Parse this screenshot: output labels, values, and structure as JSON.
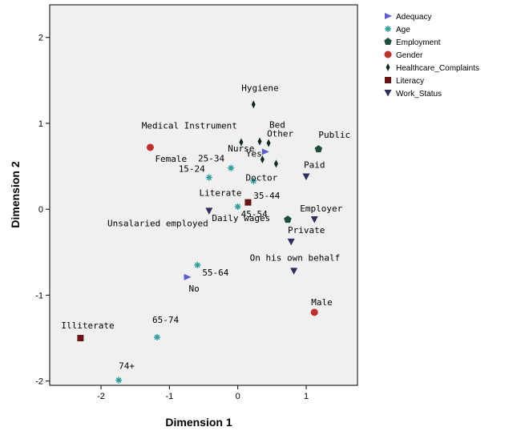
{
  "chart_data": {
    "type": "scatter",
    "xlabel": "Dimension 1",
    "ylabel": "Dimension 2",
    "xlim": [
      -2.75,
      1.75
    ],
    "ylim": [
      -2.05,
      2.38
    ],
    "xticks": [
      -2,
      -1,
      0,
      1
    ],
    "yticks": [
      -2,
      -1,
      0,
      1,
      2
    ],
    "grid": false,
    "legend_position": "top-right",
    "series": [
      {
        "name": "Adequacy",
        "marker": "triangle-right",
        "color": "#5b5bd6",
        "points": [
          {
            "label": "Yes",
            "x": 0.4,
            "y": 0.67
          },
          {
            "label": "No",
            "x": -0.74,
            "y": -0.79
          }
        ]
      },
      {
        "name": "Age",
        "marker": "asterisk",
        "color": "#2a9d9d",
        "points": [
          {
            "label": "15-24",
            "x": -0.42,
            "y": 0.37
          },
          {
            "label": "25-34",
            "x": -0.1,
            "y": 0.48
          },
          {
            "label": "35-44",
            "x": 0.23,
            "y": 0.33
          },
          {
            "label": "45-54",
            "x": 0.0,
            "y": 0.03
          },
          {
            "label": "55-64",
            "x": -0.59,
            "y": -0.65
          },
          {
            "label": "65-74",
            "x": -1.18,
            "y": -1.49
          },
          {
            "label": "74+",
            "x": -1.74,
            "y": -1.99
          }
        ]
      },
      {
        "name": "Employment",
        "marker": "pentagon",
        "color": "#1f4f3a",
        "points": [
          {
            "label": "Public",
            "x": 1.18,
            "y": 0.7
          },
          {
            "label": "Private",
            "x": 0.73,
            "y": -0.12
          }
        ]
      },
      {
        "name": "Gender",
        "marker": "circle",
        "color": "#c0302b",
        "points": [
          {
            "label": "Female",
            "x": -1.28,
            "y": 0.72
          },
          {
            "label": "Male",
            "x": 1.12,
            "y": -1.2
          }
        ]
      },
      {
        "name": "Healthcare_Complaints",
        "marker": "diamond",
        "color": "#0f2a1e",
        "points": [
          {
            "label": "Hygiene",
            "x": 0.23,
            "y": 1.22
          },
          {
            "label": "Medical Instrument",
            "x": 0.05,
            "y": 0.78
          },
          {
            "label": "Bed",
            "x": 0.32,
            "y": 0.79
          },
          {
            "label": "Nurse",
            "x": 0.36,
            "y": 0.58
          },
          {
            "label": "Other",
            "x": 0.45,
            "y": 0.77
          },
          {
            "label": "Doctor",
            "x": 0.56,
            "y": 0.53
          }
        ]
      },
      {
        "name": "Literacy",
        "marker": "square",
        "color": "#6b1414",
        "points": [
          {
            "label": "Literate",
            "x": 0.15,
            "y": 0.08
          },
          {
            "label": "Illiterate",
            "x": -2.3,
            "y": -1.5
          }
        ]
      },
      {
        "name": "Work_Status",
        "marker": "triangle-down",
        "color": "#2e2e5e",
        "points": [
          {
            "label": "Paid",
            "x": 1.0,
            "y": 0.38
          },
          {
            "label": "Employer",
            "x": 1.12,
            "y": -0.12
          },
          {
            "label": "Unsalaried employed",
            "x": -0.42,
            "y": -0.02
          },
          {
            "label": "Daily wages",
            "x": 0.78,
            "y": -0.38
          },
          {
            "label": "On his own behalf",
            "x": 0.82,
            "y": -0.72
          }
        ]
      }
    ]
  }
}
